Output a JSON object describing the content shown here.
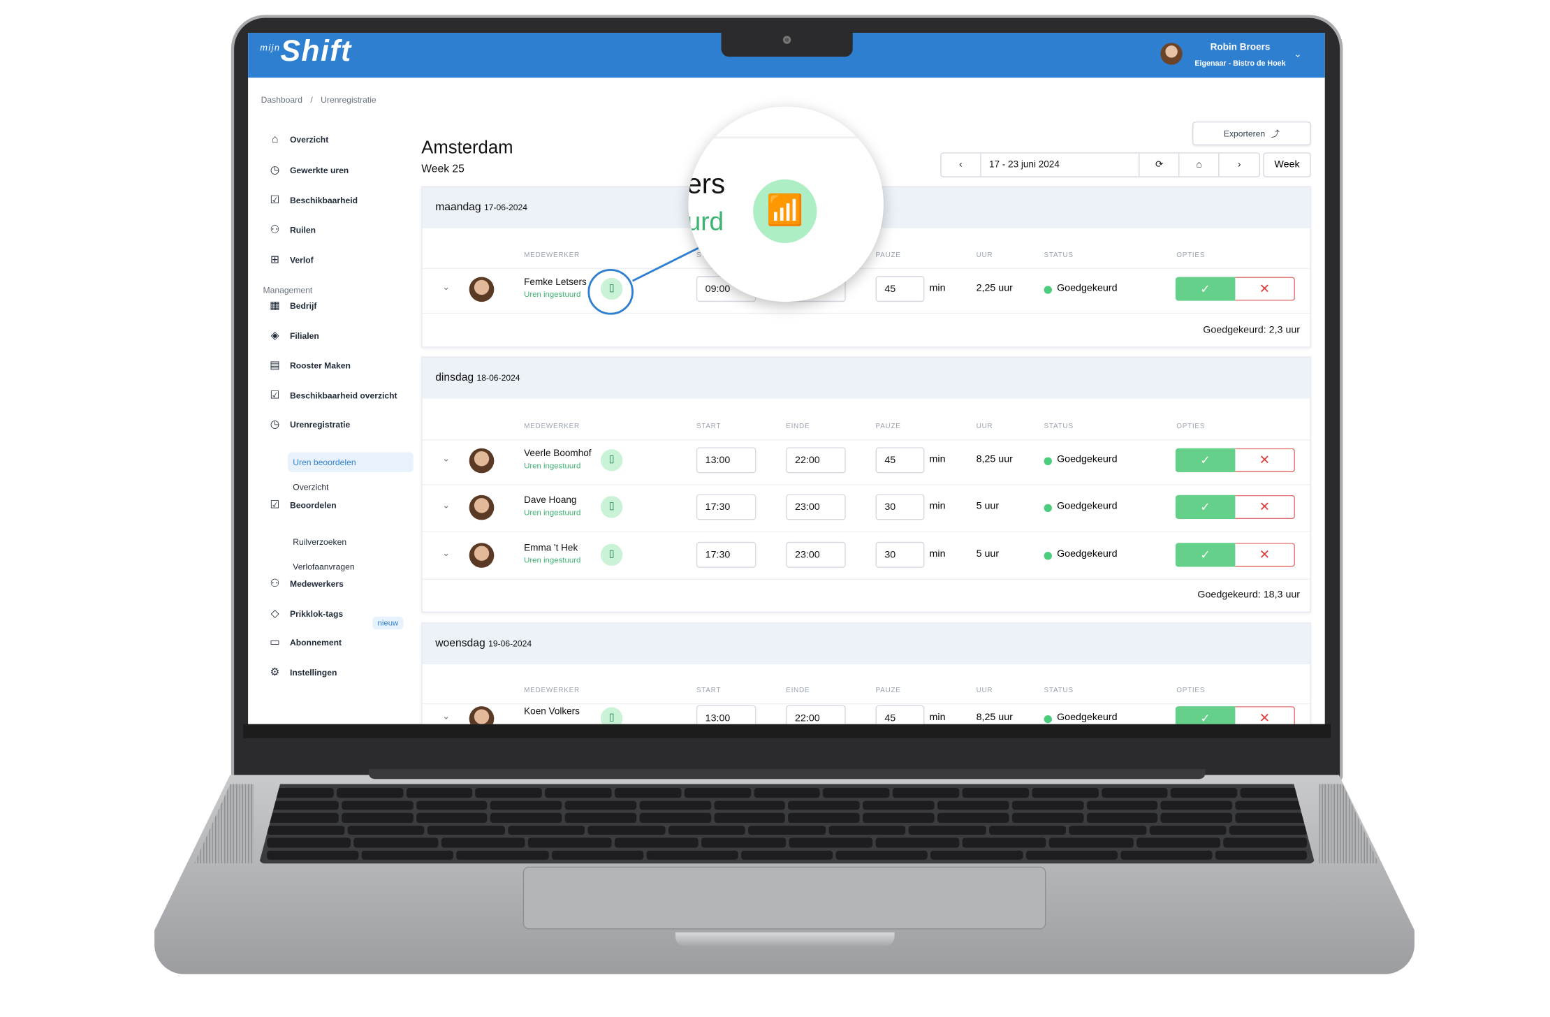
{
  "app": {
    "logo": "mijnShift",
    "logo_small": "mijn",
    "logo_main": "Shift"
  },
  "user": {
    "name": "Robin Broers",
    "role": "Eigenaar - Bistro de Hoek"
  },
  "breadcrumb": [
    "Dashboard",
    "Urenregistratie"
  ],
  "sidebar": {
    "items": [
      {
        "label": "Overzicht",
        "icon": "home-icon"
      },
      {
        "label": "Gewerkte uren",
        "icon": "clock-icon"
      },
      {
        "label": "Beschikbaarheid",
        "icon": "checkbox-icon"
      },
      {
        "label": "Ruilen",
        "icon": "swap-users-icon"
      },
      {
        "label": "Verlof",
        "icon": "leave-icon"
      }
    ],
    "management_label": "Management",
    "management": [
      {
        "label": "Bedrijf",
        "icon": "building-icon"
      },
      {
        "label": "Filialen",
        "icon": "layers-icon"
      },
      {
        "label": "Rooster Maken",
        "icon": "calendar-icon"
      },
      {
        "label": "Beschikbaarheid overzicht",
        "icon": "checkbox-icon"
      },
      {
        "label": "Urenregistratie",
        "icon": "clock-icon"
      },
      {
        "label": "Beoordelen",
        "icon": "review-icon"
      },
      {
        "label": "Medewerkers",
        "icon": "users-icon"
      },
      {
        "label": "Prikklok-tags",
        "icon": "tag-icon"
      },
      {
        "label": "Abonnement",
        "icon": "card-icon"
      },
      {
        "label": "Instellingen",
        "icon": "gear-icon"
      }
    ],
    "uren_sub": [
      "Uren beoordelen",
      "Overzicht"
    ],
    "beoordelen_sub": [
      "Ruilverzoeken",
      "Verlofaanvragen"
    ],
    "badge_new": "nieuw"
  },
  "main": {
    "title": "Amsterdam",
    "week": "Week 25",
    "export_label": "Exporteren",
    "date_range": "17 - 23 juni 2024",
    "view": "Week",
    "columns": [
      "MEDEWERKER",
      "START",
      "EINDE",
      "PAUZE",
      "UUR",
      "STATUS",
      "OPTIES"
    ],
    "pause_unit": "min",
    "days": [
      {
        "day": "maandag",
        "date": "17-06-2024",
        "total": "Goedgekeurd: 2,3 uur",
        "rows": [
          {
            "name": "Femke Letsers",
            "status_sub": "Uren ingestuurd",
            "start": "09:00",
            "end": "",
            "pause": "45",
            "hours": "2,25 uur",
            "status": "Goedgekeurd"
          }
        ]
      },
      {
        "day": "dinsdag",
        "date": "18-06-2024",
        "total": "Goedgekeurd: 18,3 uur",
        "rows": [
          {
            "name": "Veerle Boomhof",
            "status_sub": "Uren ingestuurd",
            "start": "13:00",
            "end": "22:00",
            "pause": "45",
            "hours": "8,25 uur",
            "status": "Goedgekeurd"
          },
          {
            "name": "Dave Hoang",
            "status_sub": "Uren ingestuurd",
            "start": "17:30",
            "end": "23:00",
            "pause": "30",
            "hours": "5 uur",
            "status": "Goedgekeurd"
          },
          {
            "name": "Emma 't Hek",
            "status_sub": "Uren ingestuurd",
            "start": "17:30",
            "end": "23:00",
            "pause": "30",
            "hours": "5 uur",
            "status": "Goedgekeurd"
          }
        ]
      },
      {
        "day": "woensdag",
        "date": "19-06-2024",
        "total": "",
        "rows": [
          {
            "name": "Koen Volkers",
            "status_sub": "",
            "start": "13:00",
            "end": "22:00",
            "pause": "45",
            "hours": "8,25 uur",
            "status": "Goedgekeurd"
          }
        ]
      }
    ]
  },
  "magnifier": {
    "text_top": "ers",
    "text_bottom": "urd",
    "icon": "nfc-tag-icon"
  },
  "colors": {
    "brand": "#2f7fd0",
    "approve": "#64d08a",
    "reject": "#e03c3c",
    "status_dot": "#4ccc7c"
  }
}
